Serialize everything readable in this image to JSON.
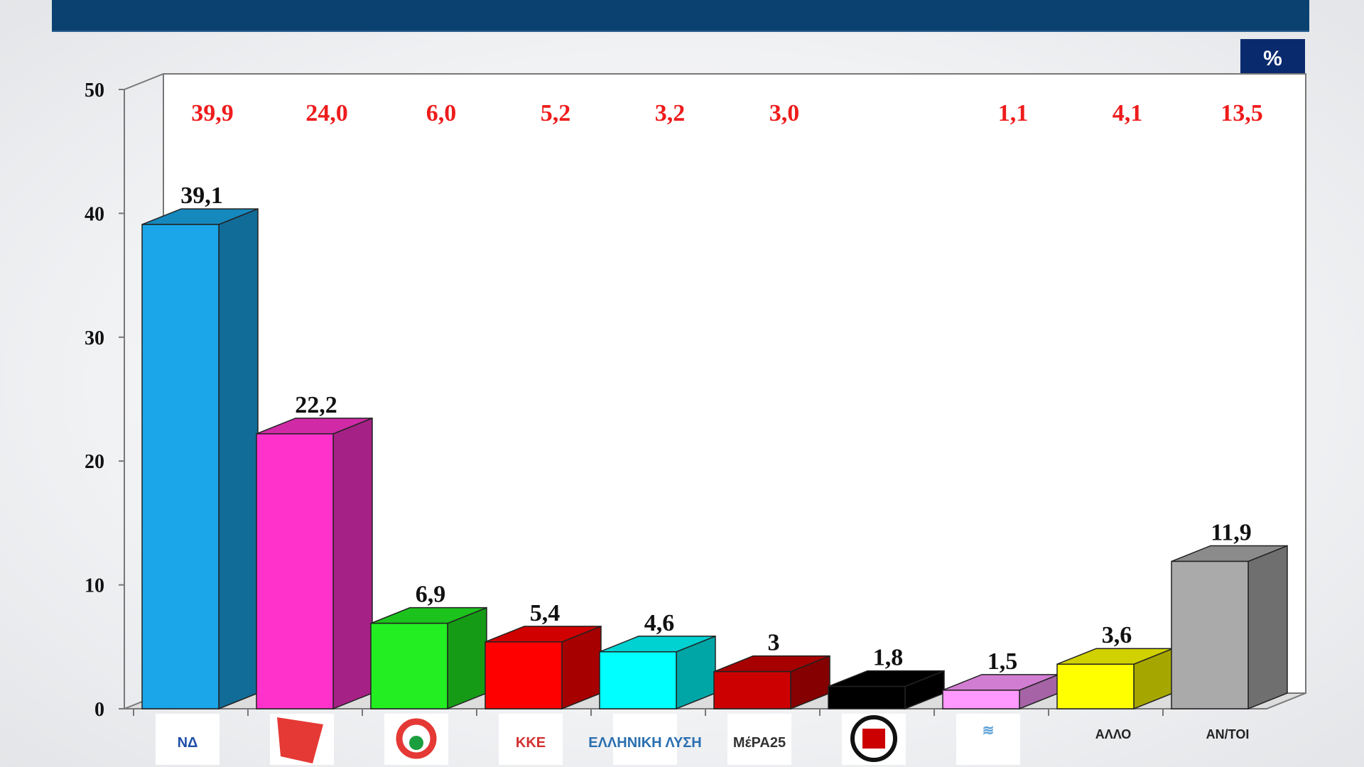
{
  "unit_badge": "%",
  "chart_data": {
    "type": "bar",
    "style": "3d",
    "categories": [
      "ΝΔ",
      "ΣΥΡΙΖΑ",
      "ΚΙΝΑΛ",
      "ΚΚΕ",
      "ΕΛΛΗΝΙΚΗ ΛΥΣΗ",
      "ΜέΡΑ25",
      "ΧΡΥΣΗ ΑΥΓΗ",
      "ΠΛΕΥΣΗ ΕΛΕΥΘΕΡΙΑΣ",
      "ΑΛΛΟ",
      "ΑΝ/ΤΟΙ"
    ],
    "category_display": [
      "logo",
      "logo",
      "logo",
      "logo",
      "logo",
      "logo",
      "logo",
      "logo",
      "text",
      "text"
    ],
    "logo_text": [
      "ΝΔ",
      "",
      "",
      "ΚΚΕ",
      "ΕΛΛΗΝΙΚΗ ΛΥΣΗ",
      "ΜέΡΑ25",
      "",
      "",
      "",
      ""
    ],
    "values": [
      39.1,
      22.2,
      6.9,
      5.4,
      4.6,
      3,
      1.8,
      1.5,
      3.6,
      11.9
    ],
    "value_labels": [
      "39,1",
      "22,2",
      "6,9",
      "5,4",
      "4,6",
      "3",
      "1,8",
      "1,5",
      "3,6",
      "11,9"
    ],
    "comparison_labels": [
      "39,9",
      "24,0",
      "6,0",
      "5,2",
      "3,2",
      "3,0",
      "",
      "1,1",
      "4,1",
      "13,5"
    ],
    "colors": [
      "#1aa6e8",
      "#ff33cc",
      "#22ee22",
      "#ff0000",
      "#00ffff",
      "#cc0000",
      "#000000",
      "#ff99ff",
      "#ffff00",
      "#aaaaaa"
    ],
    "comparison_color": "#ee1c1c",
    "ylim": [
      0,
      50
    ],
    "yticks": [
      "0",
      "10",
      "20",
      "30",
      "40",
      "50"
    ],
    "grid": false
  }
}
